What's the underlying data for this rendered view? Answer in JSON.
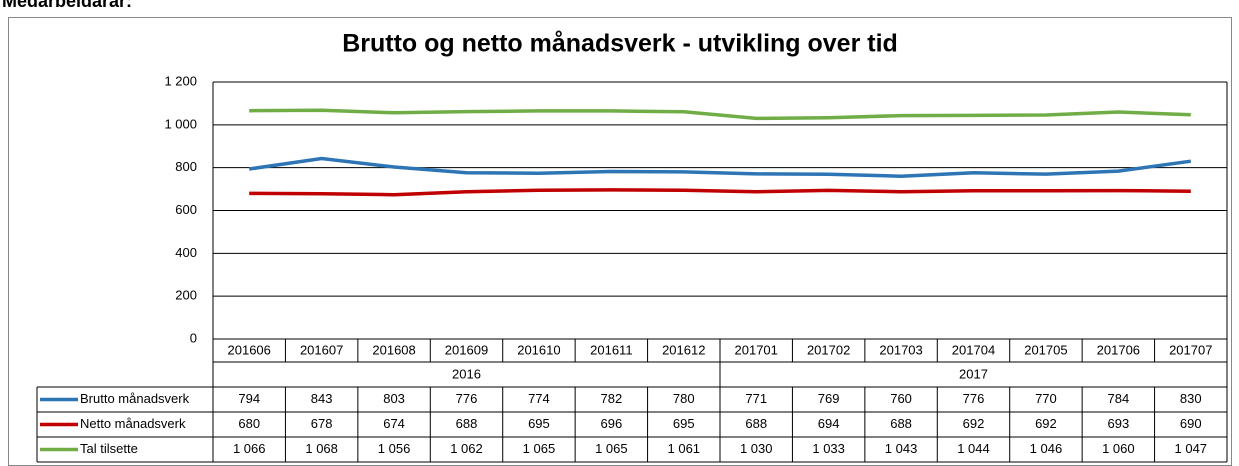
{
  "header_text": "Medarbeidarar:",
  "chart_data": {
    "type": "line",
    "title": "Brutto og netto månadsverk - utvikling over tid",
    "category_groups": [
      {
        "name": "2016",
        "categories": [
          "201606",
          "201607",
          "201608",
          "201609",
          "201610",
          "201611",
          "201612"
        ]
      },
      {
        "name": "2017",
        "categories": [
          "201701",
          "201702",
          "201703",
          "201704",
          "201705",
          "201706",
          "201707"
        ]
      }
    ],
    "series": [
      {
        "name": "Brutto månadsverk",
        "color": "#2e75b6",
        "values": [
          794,
          843,
          803,
          776,
          774,
          782,
          780,
          771,
          769,
          760,
          776,
          770,
          784,
          830
        ]
      },
      {
        "name": "Netto månadsverk",
        "color": "#c00000",
        "values": [
          680,
          678,
          674,
          688,
          695,
          696,
          695,
          688,
          694,
          688,
          692,
          692,
          693,
          690
        ]
      },
      {
        "name": "Tal tilsette",
        "color": "#70ad47",
        "values": [
          1066,
          1068,
          1056,
          1062,
          1065,
          1065,
          1061,
          1030,
          1033,
          1043,
          1044,
          1046,
          1060,
          1047
        ],
        "value_labels": [
          "1 066",
          "1 068",
          "1 056",
          "1 062",
          "1 065",
          "1 065",
          "1 061",
          "1 030",
          "1 033",
          "1 043",
          "1 044",
          "1 046",
          "1 060",
          "1 047"
        ]
      }
    ],
    "ylim": [
      0,
      1200
    ],
    "yticks": [
      0,
      200,
      400,
      600,
      800,
      {
        "value": 1000,
        "label": "1 000"
      },
      {
        "value": 1200,
        "label": "1 200"
      }
    ],
    "grid": true
  }
}
